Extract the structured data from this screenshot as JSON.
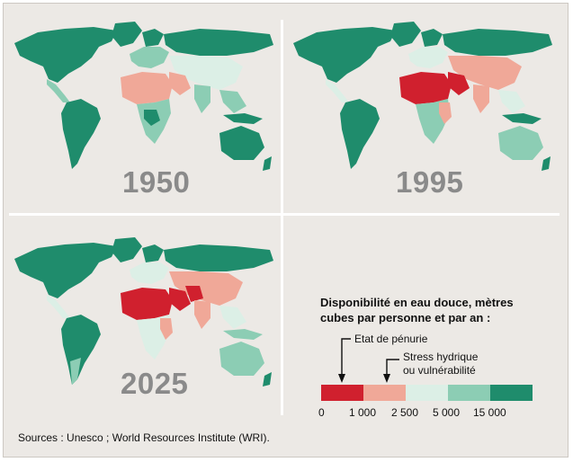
{
  "maps": [
    {
      "year": "1950"
    },
    {
      "year": "1995"
    },
    {
      "year": "2025"
    }
  ],
  "legend": {
    "title_line1": "Disponibilité en eau douce, mètres",
    "title_line2": "cubes par personne et par an :",
    "note_scarcity": "Etat de pénurie",
    "note_stress_line1": "Stress hydrique",
    "note_stress_line2": "ou vulnérabilité",
    "ticks": [
      "0",
      "1 000",
      "2 500",
      "5 000",
      "15 000"
    ],
    "colors": [
      "#d0202e",
      "#f0a898",
      "#dcefe6",
      "#8ccdb4",
      "#1f8c6c"
    ]
  },
  "sources": "Sources : Unesco ; World Resources Institute (WRI)."
}
